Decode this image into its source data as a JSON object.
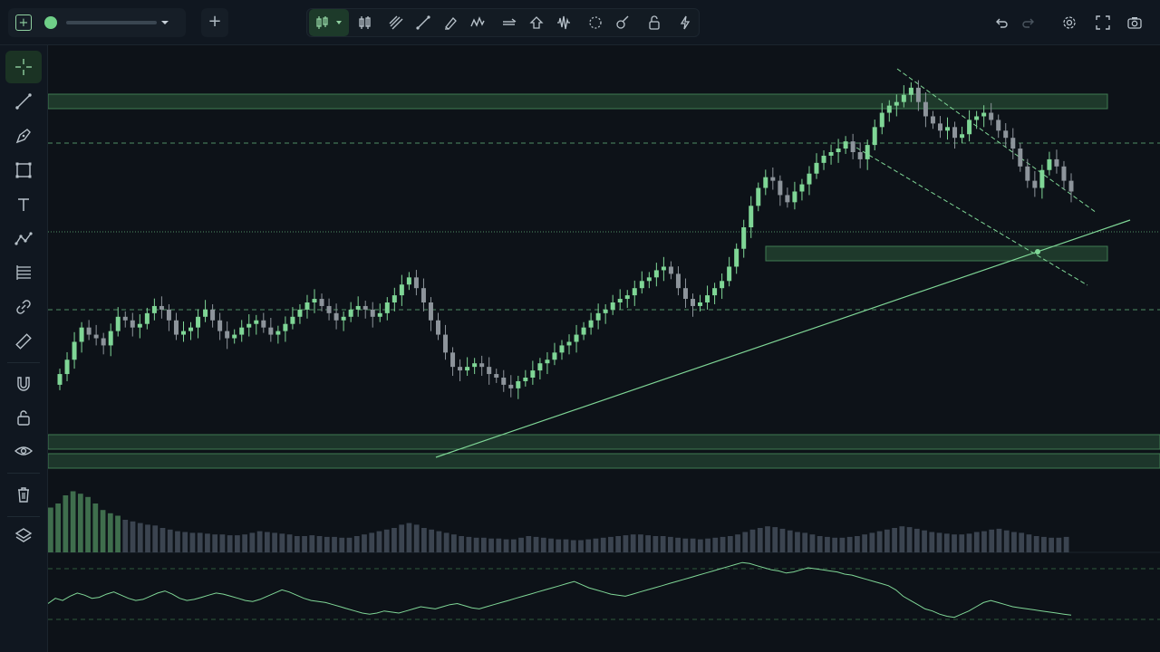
{
  "app": {
    "symbol_selector": {
      "value": "",
      "status": "live"
    },
    "add_label": "+"
  },
  "toolbar": {
    "tools": [
      "candles",
      "bars",
      "parallel-channel",
      "trend-line",
      "brush",
      "zigzag",
      "arrow",
      "home",
      "waveform",
      "circle",
      "paint",
      "lock",
      "lightning"
    ],
    "right": [
      "undo",
      "redo",
      "settings",
      "fullscreen",
      "camera"
    ]
  },
  "sidebar": {
    "tools": [
      "crosshair",
      "line",
      "pen",
      "rectangle",
      "text",
      "polyline",
      "fibonacci",
      "link",
      "ruler",
      "magnet",
      "lock",
      "eye",
      "trash",
      "layers"
    ]
  },
  "colors": {
    "background": "#0d1218",
    "panel": "#101720",
    "up": "#7fd696",
    "down": "#8d949b",
    "accent": "#6fcf88",
    "zone": "#2d5a3d"
  },
  "chart_data": {
    "type": "candlestick",
    "x_range": [
      0,
      120
    ],
    "y_range": [
      0,
      100
    ],
    "candles_close": [
      22,
      26,
      31,
      35,
      33,
      32,
      30,
      34,
      38,
      37,
      35,
      36,
      39,
      41,
      40,
      37,
      33,
      34,
      35,
      38,
      40,
      37,
      34,
      32,
      33,
      35,
      36,
      37,
      35,
      33,
      34,
      36,
      38,
      40,
      42,
      43,
      41,
      39,
      37,
      38,
      40,
      41,
      40,
      38,
      39,
      42,
      44,
      47,
      49,
      46,
      42,
      37,
      33,
      28,
      24,
      23,
      24,
      25,
      24,
      22,
      21,
      19,
      18,
      20,
      21,
      23,
      25,
      26,
      28,
      30,
      31,
      33,
      35,
      37,
      39,
      40,
      42,
      43,
      44,
      46,
      48,
      49,
      51,
      52,
      50,
      46,
      43,
      41,
      42,
      44,
      46,
      48,
      52,
      57,
      63,
      69,
      74,
      77,
      76,
      72,
      70,
      73,
      75,
      78,
      81,
      83,
      84,
      85,
      87,
      84,
      82,
      86,
      91,
      95,
      97,
      98,
      100,
      102,
      98,
      94,
      92,
      90,
      91,
      88,
      89,
      93,
      94,
      95,
      93,
      90,
      88,
      85,
      80,
      76,
      74,
      79,
      82,
      80,
      76,
      73
    ]
  },
  "volume": {
    "bars": [
      55,
      60,
      70,
      75,
      72,
      68,
      60,
      52,
      48,
      45,
      40,
      38,
      36,
      34,
      33,
      30,
      28,
      26,
      25,
      24,
      24,
      23,
      22,
      22,
      21,
      21,
      22,
      24,
      26,
      25,
      24,
      23,
      22,
      20,
      20,
      21,
      20,
      19,
      19,
      18,
      18,
      20,
      22,
      24,
      26,
      28,
      30,
      34,
      36,
      34,
      30,
      28,
      26,
      24,
      22,
      20,
      19,
      18,
      18,
      17,
      17,
      16,
      16,
      18,
      20,
      19,
      18,
      17,
      16,
      16,
      15,
      15,
      16,
      17,
      18,
      19,
      20,
      21,
      22,
      22,
      21,
      20,
      20,
      19,
      18,
      17,
      17,
      16,
      17,
      18,
      19,
      20,
      22,
      25,
      28,
      30,
      32,
      31,
      29,
      27,
      25,
      24,
      22,
      20,
      19,
      18,
      18,
      19,
      20,
      22,
      24,
      26,
      28,
      30,
      32,
      31,
      29,
      27,
      25,
      24,
      23,
      22,
      22,
      23,
      25,
      26,
      28,
      29,
      27,
      25,
      24,
      22,
      20,
      19,
      18,
      18,
      19
    ]
  },
  "oscillator": {
    "values": [
      45,
      50,
      48,
      52,
      55,
      53,
      50,
      51,
      54,
      56,
      53,
      50,
      48,
      49,
      52,
      55,
      57,
      54,
      50,
      48,
      49,
      51,
      53,
      55,
      54,
      52,
      50,
      48,
      47,
      49,
      52,
      55,
      58,
      56,
      53,
      50,
      48,
      47,
      46,
      44,
      42,
      40,
      38,
      36,
      35,
      36,
      38,
      37,
      36,
      38,
      40,
      42,
      41,
      40,
      42,
      44,
      45,
      43,
      41,
      40,
      42,
      44,
      46,
      48,
      50,
      52,
      54,
      56,
      58,
      60,
      62,
      64,
      66,
      63,
      60,
      58,
      56,
      54,
      53,
      52,
      54,
      56,
      58,
      60,
      62,
      64,
      66,
      68,
      70,
      72,
      74,
      76,
      78,
      80,
      82,
      84,
      83,
      81,
      79,
      77,
      76,
      74,
      75,
      77,
      79,
      78,
      77,
      76,
      75,
      73,
      72,
      70,
      68,
      66,
      64,
      62,
      58,
      52,
      48,
      44,
      40,
      38,
      35,
      33,
      32,
      35,
      38,
      42,
      46,
      48,
      46,
      44,
      42,
      41,
      40,
      39,
      38,
      37,
      36,
      35,
      34
    ]
  }
}
